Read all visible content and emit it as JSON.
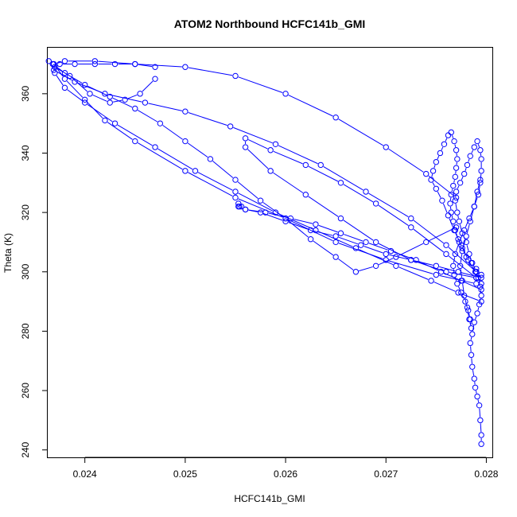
{
  "chart_data": {
    "type": "line",
    "title": "ATOM2 Northbound HCFC141b_GMI",
    "xlabel": "HCFC141b_GMI",
    "ylabel": "Theta (K)",
    "xlim": [
      0.02363,
      0.02806
    ],
    "ylim": [
      237.5,
      375.5
    ],
    "x_ticks": [
      "0.024",
      "0.025",
      "0.026",
      "0.027",
      "0.028"
    ],
    "y_ticks": [
      "240",
      "260",
      "280",
      "300",
      "320",
      "340",
      "360"
    ],
    "grid": false,
    "legend": "none",
    "series_color": "#0000ff",
    "marker": "open-circle",
    "series": [
      {
        "x": [
          0.02795,
          0.02795,
          0.02794,
          0.02793,
          0.02791,
          0.02789,
          0.02788,
          0.02786,
          0.02785,
          0.02784,
          0.02786,
          0.02788,
          0.02791,
          0.02793,
          0.02795,
          0.02794,
          0.02792,
          0.0279,
          0.02786,
          0.02783,
          0.0278,
          0.02776,
          0.02773,
          0.02771,
          0.02769,
          0.0277,
          0.02774,
          0.02778,
          0.02781,
          0.02784,
          0.02788,
          0.02791,
          0.02794,
          0.02795,
          0.02795,
          0.02794,
          0.02792,
          0.02788,
          0.02783,
          0.02778,
          0.02773,
          0.02769,
          0.02767,
          0.02768,
          0.02771,
          0.02775,
          0.02779,
          0.02782,
          0.02784,
          0.02785,
          0.02783,
          0.02781,
          0.02778,
          0.02776,
          0.02774,
          0.02776,
          0.0278,
          0.02784,
          0.02788,
          0.02791,
          0.02794
        ],
        "y": [
          242,
          245,
          250,
          255,
          258,
          261,
          264,
          268,
          272,
          276,
          279,
          283,
          286,
          289,
          292,
          295,
          298,
          300,
          303,
          306,
          310,
          313,
          317,
          320,
          324,
          327,
          330,
          333,
          336,
          339,
          342,
          344,
          341,
          338,
          334,
          330,
          326,
          322,
          318,
          314,
          310,
          306,
          302,
          299,
          296,
          293,
          290,
          287,
          284,
          281,
          284,
          288,
          292,
          297,
          302,
          307,
          312,
          317,
          322,
          327,
          331
        ]
      },
      {
        "x": [
          0.02795,
          0.0279,
          0.02785,
          0.0278,
          0.02776,
          0.02772,
          0.02769,
          0.02767,
          0.02765,
          0.02764,
          0.02765,
          0.02767,
          0.02769,
          0.0277,
          0.02771,
          0.0277,
          0.02768,
          0.02765,
          0.02762,
          0.02758,
          0.02754,
          0.0275,
          0.02747,
          0.02745,
          0.0275,
          0.02756,
          0.02762,
          0.02768,
          0.02775,
          0.02782,
          0.02789,
          0.02795
        ],
        "y": [
          299,
          301,
          303,
          305,
          308,
          311,
          314,
          317,
          320,
          323,
          326,
          329,
          332,
          335,
          338,
          341,
          344,
          347,
          346,
          343,
          340,
          337,
          334,
          331,
          328,
          324,
          319,
          314,
          309,
          304,
          300,
          296
        ]
      },
      {
        "x": [
          0.02795,
          0.02772,
          0.0275,
          0.02725,
          0.027,
          0.02675,
          0.0265,
          0.02625,
          0.026,
          0.02575,
          0.0256,
          0.02556,
          0.02554,
          0.02553
        ],
        "y": [
          298,
          300,
          302,
          304,
          306,
          309,
          312,
          314,
          317,
          320,
          321,
          322,
          322,
          323
        ]
      },
      {
        "x": [
          0.02553,
          0.0256,
          0.0258,
          0.02605,
          0.0263,
          0.02655,
          0.0268,
          0.02705,
          0.0273,
          0.02755,
          0.02775,
          0.02795
        ],
        "y": [
          322,
          321,
          320,
          318,
          316,
          313,
          310,
          307,
          304,
          300,
          297,
          294
        ]
      },
      {
        "x": [
          0.02795,
          0.02772,
          0.02745,
          0.0271,
          0.0267,
          0.0263,
          0.0259,
          0.0255,
          0.0251,
          0.0247,
          0.0243,
          0.024,
          0.0238,
          0.0237,
          0.02369,
          0.02375,
          0.0239,
          0.0241,
          0.0243,
          0.0245,
          0.0247
        ],
        "y": [
          290,
          293,
          297,
          302,
          308,
          314,
          320,
          327,
          334,
          342,
          350,
          357,
          362,
          367,
          370,
          370,
          370,
          370,
          370,
          370,
          369
        ]
      },
      {
        "x": [
          0.0247,
          0.02455,
          0.0244,
          0.02425,
          0.02405,
          0.02385,
          0.0237,
          0.02369,
          0.0239,
          0.0242,
          0.0246,
          0.025,
          0.02545,
          0.0259,
          0.02635,
          0.0268,
          0.02725,
          0.0276,
          0.0279
        ],
        "y": [
          365,
          360,
          358,
          357,
          360,
          366,
          369,
          368,
          364,
          360,
          357,
          354,
          349,
          343,
          336,
          327,
          318,
          309,
          300
        ]
      },
      {
        "x": [
          0.0279,
          0.0276,
          0.02725,
          0.0269,
          0.02655,
          0.0262,
          0.02585,
          0.0256,
          0.0256,
          0.02585,
          0.0262,
          0.02655,
          0.0269,
          0.02725,
          0.0276,
          0.0279
        ],
        "y": [
          298,
          300,
          304,
          310,
          318,
          326,
          334,
          342,
          345,
          341,
          336,
          330,
          323,
          315,
          306,
          298
        ]
      },
      {
        "x": [
          0.0279,
          0.0275,
          0.027,
          0.0265,
          0.026,
          0.0255,
          0.025,
          0.0245,
          0.0242,
          0.024,
          0.0238,
          0.02369,
          0.0238,
          0.0241,
          0.0245,
          0.025,
          0.0255,
          0.026,
          0.0265,
          0.027,
          0.0274,
          0.0277
        ],
        "y": [
          296,
          299,
          304,
          310,
          318,
          325,
          334,
          344,
          351,
          358,
          365,
          370,
          371,
          371,
          370,
          369,
          366,
          360,
          352,
          342,
          333,
          325
        ]
      },
      {
        "x": [
          0.0277,
          0.0274,
          0.0271,
          0.0269,
          0.0267,
          0.0265,
          0.02625,
          0.026,
          0.02575,
          0.0255,
          0.02525,
          0.025,
          0.02475,
          0.0245,
          0.02425,
          0.024,
          0.0238,
          0.02368,
          0.02364
        ],
        "y": [
          315,
          310,
          305,
          302,
          300,
          305,
          311,
          318,
          324,
          331,
          338,
          344,
          350,
          355,
          359,
          363,
          367,
          370,
          371
        ]
      }
    ]
  }
}
